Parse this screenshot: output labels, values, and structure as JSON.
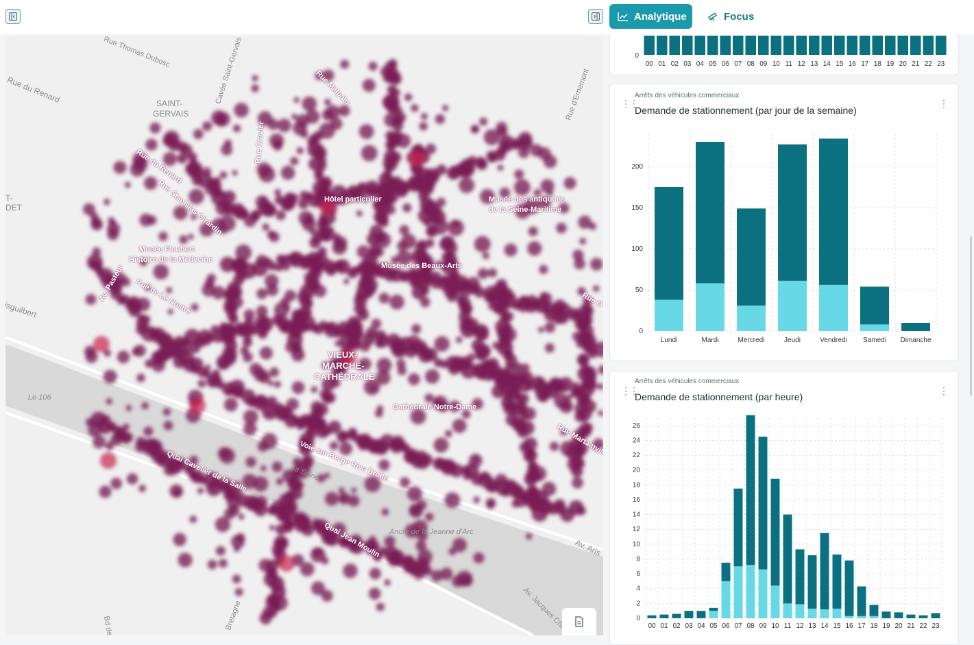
{
  "toolbar": {
    "tabs": [
      {
        "label": "Analytique",
        "icon": "line-chart-icon",
        "active": true
      },
      {
        "label": "Focus",
        "icon": "telescope-icon",
        "active": false
      }
    ]
  },
  "map": {
    "street_labels": [
      "Rue Thomas Dubosc",
      "Rue du Renard",
      "SAINT-",
      "GERVAIS",
      "Cavée Saint-Gervais",
      "Rue Malpalu",
      "Rue d'Ernemont",
      "Rue Crevier",
      "Rue du Renard",
      "Rue Stanislas Girardin",
      "Hôtel particulier",
      "Musée des antiquités",
      "de la Seine-Maritime",
      "Musée Flaubert",
      "Histoire de la Médecine",
      "Av. Pasteur",
      "Musée des Beaux-Arts",
      "Rue de Le Nostre",
      "Rue O",
      "isguilbert",
      "T-",
      "DET",
      "VIEUX-",
      "MARCHÉ-",
      "CATHÉDRALE",
      "Le 106",
      "Cathédrale Notre-Dame",
      "Rue Martainville",
      "Voie sur Berge Rive Droite",
      "La Seine",
      "Quai Cavelier de la Salle",
      "Quai Jean Moulin",
      "Ancre de la Jeanne d'Arc",
      "Av. Aris",
      "Av. Jacques Cha",
      "Bretagne",
      "Bd de"
    ]
  },
  "top_panel": {
    "y_zero": "0",
    "hours": [
      "00",
      "01",
      "02",
      "03",
      "04",
      "05",
      "06",
      "07",
      "08",
      "09",
      "10",
      "11",
      "12",
      "13",
      "14",
      "15",
      "16",
      "17",
      "18",
      "19",
      "20",
      "21",
      "22",
      "23"
    ]
  },
  "weekday_panel": {
    "subtitle": "Arrêts des véhicules commerciaux",
    "title": "Demande de stationnement (par jour de la semaine)"
  },
  "hour_panel": {
    "subtitle": "Arrêts des véhicules commerciaux",
    "title": "Demande de stationnement (par heure)"
  },
  "colors": {
    "dark": "#0b7080",
    "light": "#66d8e6",
    "accent": "#1a9aaa",
    "heat": "#7a1e55"
  },
  "chart_data": [
    {
      "type": "bar",
      "stacked": true,
      "title": "Demande de stationnement (par jour de la semaine)",
      "categories": [
        "Lundi",
        "Mardi",
        "Mercredi",
        "Jeudi",
        "Vendredi",
        "Samedi",
        "Dimanche"
      ],
      "series": [
        {
          "values": [
            38,
            58,
            31,
            61,
            56,
            8,
            0
          ]
        },
        {
          "values": [
            137,
            172,
            118,
            166,
            178,
            46,
            10
          ]
        }
      ],
      "ylim": [
        0,
        240
      ],
      "yticks": [
        0,
        50,
        100,
        150,
        200
      ],
      "grid": true
    },
    {
      "type": "bar",
      "stacked": true,
      "title": "Demande de stationnement (par heure)",
      "categories": [
        "00",
        "01",
        "02",
        "03",
        "04",
        "05",
        "06",
        "07",
        "08",
        "09",
        "10",
        "11",
        "12",
        "13",
        "14",
        "15",
        "16",
        "17",
        "18",
        "19",
        "20",
        "21",
        "22",
        "23"
      ],
      "series": [
        {
          "values": [
            0,
            0,
            0,
            0,
            0,
            1,
            5,
            7,
            7.2,
            6.6,
            4.4,
            2,
            1.9,
            1.3,
            1.2,
            1.3,
            0.3,
            0.3,
            0.3,
            0,
            0,
            0,
            0,
            0
          ]
        },
        {
          "values": [
            0.4,
            0.5,
            0.6,
            1,
            1,
            0.4,
            2.5,
            10.5,
            20.2,
            17.9,
            14.4,
            12,
            7.4,
            7.2,
            10.3,
            7.3,
            7.5,
            4,
            1.5,
            0.9,
            0.8,
            0.5,
            0.4,
            0.7
          ]
        }
      ],
      "ylim": [
        0,
        27
      ],
      "yticks": [
        0,
        2,
        4,
        6,
        8,
        10,
        12,
        14,
        16,
        18,
        20,
        22,
        24,
        26
      ],
      "grid": true
    }
  ]
}
